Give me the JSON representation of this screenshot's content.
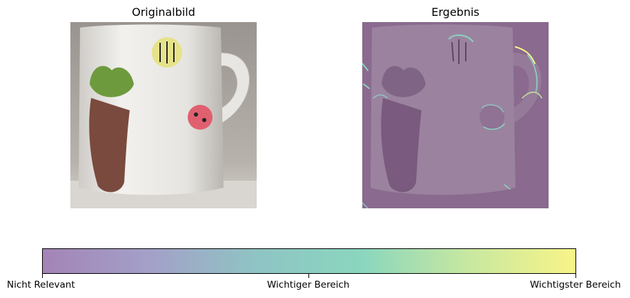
{
  "left_panel": {
    "title": "Originalbild"
  },
  "right_panel": {
    "title": "Ergebnis"
  },
  "colorbar": {
    "colors": [
      "#a384b6",
      "#a3a0c8",
      "#8fc4c4",
      "#8ad6be",
      "#c8e8a0",
      "#f8f488"
    ],
    "ticks": [
      "Nicht Relevant",
      "Wichtiger Bereich",
      "Wichtigster Bereich"
    ]
  }
}
